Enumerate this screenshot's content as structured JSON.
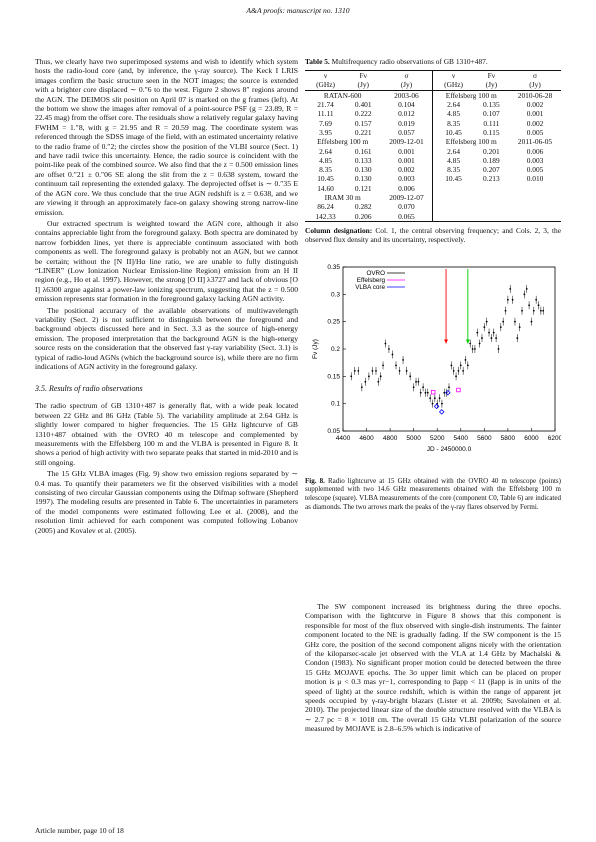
{
  "header": "A&A proofs: manuscript no. 1310",
  "left_paras": [
    "Thus, we clearly have two superimposed systems and wish to identify which system hosts the radio-loud core (and, by inference, the γ-ray source). The Keck I LRIS images confirm the basic structure seen in the NOT images; the source is extended with a brighter core displaced ∼ 0.″6 to the west. Figure 2 shows 8″ regions around the AGN. The DEIMOS slit position on April 07 is marked on the g frames (left). At the bottom we show the images after removal of a point-source PSF (g = 23.89, R = 22.45 mag) from the offset core. The residuals show a relatively regular galaxy having FWHM = 1.″8, with g = 21.95 and R = 20.59 mag. The coordinate system was referenced through the SDSS image of the field, with an estimated uncertainty relative to the radio frame of 0.″2; the circles show the position of the VLBI source (Sect. 1) and have radii twice this uncertainty. Hence, the radio source is coincident with the point-like peak of the combined source. We also find that the z = 0.500 emission lines are offset 0.″21 ± 0.″06 SE along the slit from the z = 0.638 system, toward the continuum tail representing the extended galaxy. The deprojected offset is ∼ 0.″35 E of the AGN core. We thus conclude that the true AGN redshift is z = 0.638, and we are viewing it through an approximately face-on galaxy showing strong narrow-line emission.",
    "Our extracted spectrum is weighted toward the AGN core, although it also contains appreciable light from the foreground galaxy. Both spectra are dominated by narrow forbidden lines, yet there is appreciable continuum associated with both components as well. The foreground galaxy is probably not an AGN, but we cannot be certain; without the [N II]/Hα line ratio, we are unable to fully distinguish “LINER” (Low Ionization Nuclear Emission-line Region) emission from an H II region (e.g., Ho et al. 1997). However, the strong [O II] λ3727 and lack of obvious [O I] λ6300 argue against a power-law ionizing spectrum, suggesting that the z = 0.500 emission represents star formation in the foreground galaxy lacking AGN activity.",
    "The positional accuracy of the available observations of multiwavelength variability (Sect. 2) is not sufficient to distinguish between the foreground and background objects discussed here and in Sect. 3.3 as the source of high-energy emission. The proposed interpretation that the background AGN is the high-energy source rests on the consideration that the observed fast γ-ray variability (Sect. 3.1) is typical of radio-loud AGNs (which the background source is), while there are no firm indications of AGN activity in the foreground galaxy."
  ],
  "section_title": "3.5. Results of radio observations",
  "left_paras2": [
    "The radio spectrum of GB 1310+487 is generally flat, with a wide peak located between 22 GHz and 86 GHz (Table 5). The variability amplitude at 2.64 GHz is slightly lower compared to higher frequencies. The 15 GHz lightcurve of GB 1310+487 obtained with the OVRO 40 m telescope and complemented by measurements with the Effelsberg 100 m and the VLBA is presented in Figure 8. It shows a period of high activity with two separate peaks that started in mid-2010 and is still ongoing.",
    "The 15 GHz VLBA images (Fig. 9) show two emission regions separated by ∼ 0.4 mas. To quantify their parameters we fit the observed visibilities with a model consisting of two circular Gaussian components using the Difmap software (Shepherd 1997). The modeling results are presented in Table 6. The uncertainties in parameters of the model components were estimated following Lee et al. (2008), and the resolution limit achieved for each component was computed following Lobanov (2005) and Kovalev et al. (2005)."
  ],
  "footer": "Article number, page 10 of 18",
  "table": {
    "caption_label": "Table 5.",
    "caption_text": "Multifrequency radio observations of GB 1310+487.",
    "head1": [
      "ν",
      "Fν",
      "σ",
      "ν",
      "Fν",
      "σ"
    ],
    "head2": [
      "(GHz)",
      "(Jy)",
      "(Jy)",
      "(GHz)",
      "(Jy)",
      "(Jy)"
    ],
    "groups": [
      {
        "left_title": [
          "RATAN-600",
          "2003-06"
        ],
        "right_title": [
          "Effelsberg 100 m",
          "2010-06-28"
        ],
        "left_rows": [
          [
            "21.74",
            "0.401",
            "0.104"
          ],
          [
            "11.11",
            "0.222",
            "0.012"
          ],
          [
            "7.69",
            "0.157",
            "0.019"
          ],
          [
            "3.95",
            "0.221",
            "0.057"
          ]
        ],
        "right_rows": [
          [
            "2.64",
            "0.135",
            "0.002"
          ],
          [
            "4.85",
            "0.107",
            "0.001"
          ],
          [
            "8.35",
            "0.111",
            "0.002"
          ],
          [
            "10.45",
            "0.115",
            "0.005"
          ]
        ]
      },
      {
        "left_title": [
          "Effelsberg 100 m",
          "2009-12-01"
        ],
        "right_title": [
          "Effelsberg 100 m",
          "2011-06-05"
        ],
        "left_rows": [
          [
            "2.64",
            "0.161",
            "0.001"
          ],
          [
            "4.85",
            "0.133",
            "0.001"
          ],
          [
            "8.35",
            "0.130",
            "0.002"
          ],
          [
            "10.45",
            "0.130",
            "0.003"
          ],
          [
            "14.60",
            "0.121",
            "0.006"
          ]
        ],
        "right_rows": [
          [
            "2.64",
            "0.201",
            "0.006"
          ],
          [
            "4.85",
            "0.189",
            "0.003"
          ],
          [
            "8.35",
            "0.207",
            "0.005"
          ],
          [
            "10.45",
            "0.213",
            "0.010"
          ]
        ]
      },
      {
        "left_title": [
          "IRAM 30 m",
          "2009-12-07"
        ],
        "right_title": [
          "",
          ""
        ],
        "left_rows": [
          [
            "86.24",
            "0.282",
            "0.070"
          ],
          [
            "142.33",
            "0.206",
            "0.065"
          ]
        ],
        "right_rows": []
      }
    ],
    "note_label": "Column designation:",
    "note_text": "Col. 1, the central observing frequency; and Cols. 2, 3, the observed flux density and its uncertainty, respectively."
  },
  "figure": {
    "caption_label": "Fig. 8.",
    "caption_text": "Radio lightcurve at 15 GHz obtained with the OVRO 40 m telescope (points) supplemented with two 14.6 GHz measurements obtained with the Effelsberg 100 m telescope (square). VLBA measurements of the core (component C0, Table 6) are indicated as diamonds. The two arrows mark the peaks of the γ-ray flares observed by Fermi."
  },
  "chart_data": {
    "type": "scatter",
    "title": "",
    "xlabel": "JD - 2450000.0",
    "ylabel": "Fν (Jy)",
    "xlim": [
      4400,
      6200
    ],
    "ylim": [
      0.05,
      0.35
    ],
    "xticks": [
      4400,
      4600,
      4800,
      5000,
      5200,
      5400,
      5600,
      5800,
      6000,
      6200
    ],
    "yticks": [
      0.05,
      0.1,
      0.15,
      0.2,
      0.25,
      0.3,
      0.35
    ],
    "legend_position": "top-left",
    "legend": [
      "OVRO",
      "Effelsberg",
      "VLBA core"
    ],
    "colors": {
      "ovro": "#000000",
      "effelsberg": "#ff00ff",
      "vlba": "#0000ff",
      "arrow1": "#ff0000",
      "arrow2": "#00cc00"
    },
    "series": [
      {
        "name": "OVRO",
        "marker": "point",
        "x": [
          4470,
          4500,
          4530,
          4560,
          4590,
          4620,
          4650,
          4680,
          4700,
          4720,
          4740,
          4760,
          4790,
          4820,
          4850,
          4880,
          4910,
          4940,
          4970,
          5000,
          5020,
          5040,
          5060,
          5080,
          5100,
          5120,
          5140,
          5160,
          5180,
          5200,
          5220,
          5240,
          5260,
          5280,
          5300,
          5320,
          5340,
          5360,
          5380,
          5400,
          5420,
          5440,
          5460,
          5480,
          5500,
          5520,
          5540,
          5560,
          5580,
          5600,
          5620,
          5640,
          5660,
          5680,
          5700,
          5720,
          5740,
          5760,
          5780,
          5800,
          5820,
          5840,
          5860,
          5880,
          5900,
          5920,
          5940,
          5960,
          5980,
          6000,
          6020,
          6040,
          6060,
          6080,
          6100
        ],
        "y": [
          0.15,
          0.16,
          0.16,
          0.13,
          0.14,
          0.15,
          0.16,
          0.16,
          0.14,
          0.15,
          0.17,
          0.21,
          0.2,
          0.19,
          0.17,
          0.16,
          0.18,
          0.16,
          0.15,
          0.13,
          0.14,
          0.14,
          0.12,
          0.13,
          0.12,
          0.12,
          0.11,
          0.1,
          0.11,
          0.1,
          0.11,
          0.1,
          0.12,
          0.12,
          0.13,
          0.17,
          0.16,
          0.15,
          0.16,
          0.17,
          0.16,
          0.18,
          0.17,
          0.21,
          0.2,
          0.2,
          0.23,
          0.21,
          0.22,
          0.24,
          0.25,
          0.23,
          0.22,
          0.23,
          0.22,
          0.2,
          0.24,
          0.25,
          0.27,
          0.29,
          0.31,
          0.29,
          0.25,
          0.22,
          0.24,
          0.27,
          0.3,
          0.31,
          0.28,
          0.25,
          0.27,
          0.29,
          0.28,
          0.27,
          0.27
        ]
      },
      {
        "name": "Effelsberg",
        "marker": "square",
        "x": [
          5166,
          5380
        ],
        "y": [
          0.121,
          0.125
        ]
      },
      {
        "name": "VLBA core",
        "marker": "diamond",
        "x": [
          5195,
          5238,
          5290
        ],
        "y": [
          0.095,
          0.085,
          0.12
        ]
      }
    ],
    "arrows_x": [
      5275,
      5460
    ]
  },
  "right_paras": [
    "The SW component increased its brightness during the three epochs. Comparison with the lightcurve in Figure 8 shows that this component is responsible for most of the flux observed with single-dish instruments. The fainter component located to the NE is gradually fading. If the SW component is the 15 GHz core, the position of the second component aligns nicely with the orientation of the kiloparsec-scale jet observed with the VLA at 1.4 GHz by Machalski & Condon (1983). No significant proper motion could be detected between the three 15 GHz MOJAVE epochs. The 3σ upper limit which can be placed on proper motion is μ < 0.3 mas yr−1, corresponding to βapp < 11 (βapp is in units of the speed of light) at the source redshift, which is within the range of apparent jet speeds occupied by γ-ray-bright blazars (Lister et al. 2009b; Savolainen et al. 2010). The projected linear size of the double structure resolved with the VLBA is ∼ 2.7 pc = 8 × 1018 cm. The overall 15 GHz VLBI polarization of the source measured by MOJAVE is 2.8–6.5% which is indicative of"
  ]
}
